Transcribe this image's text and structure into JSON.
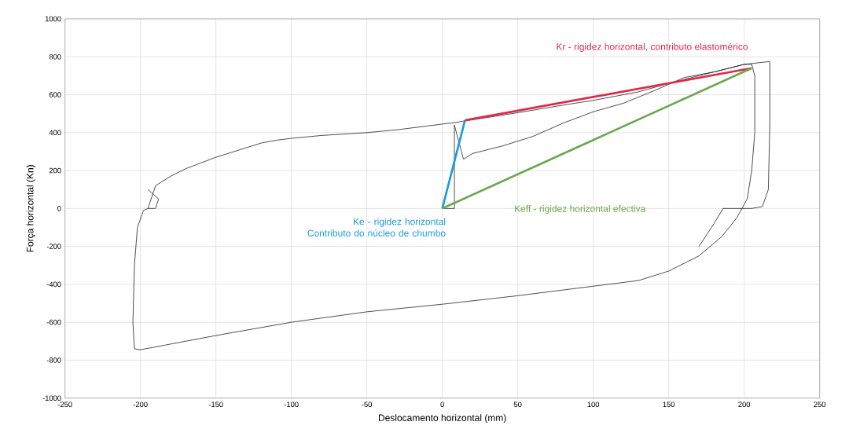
{
  "chart_data": {
    "type": "line",
    "xlabel": "Deslocamento horizontal (mm)",
    "ylabel": "Força horizontal (Kn)",
    "xlim": [
      -250,
      250
    ],
    "ylim": [
      -1000,
      1000
    ],
    "xticks": [
      -250,
      -200,
      -150,
      -100,
      -50,
      0,
      50,
      100,
      150,
      200,
      250
    ],
    "yticks": [
      -1000,
      -800,
      -600,
      -400,
      -200,
      0,
      200,
      400,
      600,
      800,
      1000
    ],
    "grid": true,
    "legend": false,
    "series": [
      {
        "color": "#222222",
        "x": [
          -195,
          -190,
          -180,
          -170,
          -160,
          -150,
          -140,
          -130,
          -120,
          -110,
          -100,
          -80,
          -60,
          -50,
          -30,
          -10,
          0,
          10,
          15,
          30,
          50,
          80,
          100,
          130,
          150,
          170,
          200,
          205,
          207,
          207,
          205,
          202,
          195,
          185,
          170,
          150,
          130,
          100,
          80,
          50,
          0,
          -50,
          -100,
          -150,
          -200,
          -204,
          -205,
          -204,
          -202,
          -198,
          -195,
          -190,
          -188,
          -195
        ],
        "values": [
          0,
          120,
          170,
          210,
          240,
          270,
          295,
          320,
          345,
          360,
          370,
          385,
          395,
          400,
          415,
          435,
          445,
          455,
          462,
          480,
          505,
          545,
          570,
          615,
          660,
          700,
          760,
          760,
          700,
          400,
          200,
          50,
          -50,
          -150,
          -250,
          -330,
          -380,
          -410,
          -430,
          -460,
          -505,
          -545,
          -600,
          -670,
          -745,
          -740,
          -600,
          -300,
          -100,
          -10,
          0,
          0,
          50,
          100
        ]
      },
      {
        "color": "#222222",
        "x": [
          0,
          8,
          8,
          14,
          20,
          40,
          60,
          80,
          100,
          120,
          140,
          160,
          180,
          200,
          217,
          217,
          216,
          212,
          205,
          186,
          180,
          170
        ],
        "values": [
          0,
          0,
          440,
          260,
          290,
          330,
          380,
          450,
          510,
          555,
          620,
          690,
          720,
          760,
          775,
          450,
          100,
          10,
          0,
          0,
          -80,
          -200
        ]
      },
      {
        "type": "line",
        "name": "Ke - rigidez horizontal Contributo do núcleo de chumbo",
        "color": "#1e9ad6",
        "x": [
          0,
          15
        ],
        "values": [
          0,
          465
        ]
      },
      {
        "type": "line",
        "name": "Kr - rigidez horizontal, contributo elastomérico",
        "color": "#e0284a",
        "x": [
          15,
          205
        ],
        "values": [
          465,
          740
        ]
      },
      {
        "type": "line",
        "name": "Keff - rigidez horizontal efectiva",
        "color": "#6aa84f",
        "x": [
          0,
          205
        ],
        "values": [
          0,
          740
        ]
      }
    ]
  }
}
